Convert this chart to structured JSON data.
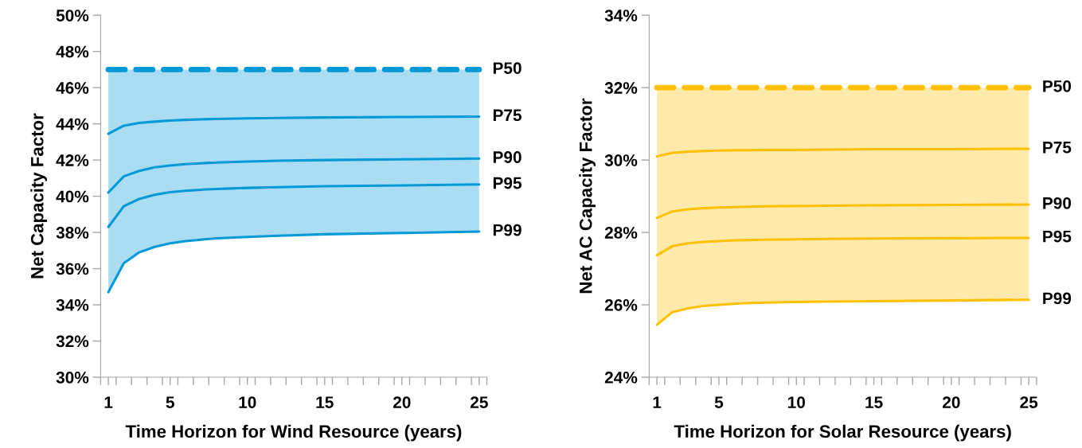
{
  "chart_data": [
    {
      "type": "line",
      "xlabel": "Time Horizon for Wind Resource (years)",
      "ylabel": "Net Capacity Factor",
      "xlim": [
        0.5,
        25.5
      ],
      "ylim": [
        30,
        50
      ],
      "xticks": [
        {
          "value": 0.5,
          "label": null
        },
        1,
        {
          "value": 1.5,
          "label": null
        },
        {
          "value": 2.5,
          "label": null
        },
        {
          "value": 3.5,
          "label": null
        },
        {
          "value": 4.5,
          "label": null
        },
        5,
        {
          "value": 5.5,
          "label": null
        },
        {
          "value": 6.5,
          "label": null
        },
        {
          "value": 7.5,
          "label": null
        },
        {
          "value": 8.5,
          "label": null
        },
        {
          "value": 9.5,
          "label": null
        },
        10,
        {
          "value": 10.5,
          "label": null
        },
        {
          "value": 11.5,
          "label": null
        },
        {
          "value": 12.5,
          "label": null
        },
        {
          "value": 13.5,
          "label": null
        },
        {
          "value": 14.5,
          "label": null
        },
        15,
        {
          "value": 15.5,
          "label": null
        },
        {
          "value": 16.5,
          "label": null
        },
        {
          "value": 17.5,
          "label": null
        },
        {
          "value": 18.5,
          "label": null
        },
        {
          "value": 19.5,
          "label": null
        },
        20,
        {
          "value": 20.5,
          "label": null
        },
        {
          "value": 21.5,
          "label": null
        },
        {
          "value": 22.5,
          "label": null
        },
        {
          "value": 23.5,
          "label": null
        },
        {
          "value": 24.5,
          "label": null
        },
        25,
        {
          "value": 25.5,
          "label": null
        }
      ],
      "yticks": [
        {
          "value": 30,
          "label": "30%"
        },
        {
          "value": 32,
          "label": "32%"
        },
        {
          "value": 34,
          "label": "34%"
        },
        {
          "value": 36,
          "label": "36%"
        },
        {
          "value": 38,
          "label": "38%"
        },
        {
          "value": 40,
          "label": "40%"
        },
        {
          "value": 42,
          "label": "42%"
        },
        {
          "value": 44,
          "label": "44%"
        },
        {
          "value": 46,
          "label": "46%"
        },
        {
          "value": 48,
          "label": "48%"
        },
        {
          "value": 50,
          "label": "50%"
        }
      ],
      "grid": false,
      "legend": false,
      "x": [
        1,
        2,
        3,
        4,
        5,
        6,
        7,
        8,
        10,
        12,
        15,
        20,
        25
      ],
      "series": [
        {
          "name": "P50",
          "color": "#0099d8",
          "line_style": "dashed",
          "values": [
            47,
            47,
            47,
            47,
            47,
            47,
            47,
            47,
            47,
            47,
            47,
            47,
            47
          ],
          "lower": [
            34.7,
            36.3,
            36.9,
            37.2,
            37.4,
            37.52,
            37.6,
            37.67,
            37.75,
            37.82,
            37.9,
            37.97,
            38.05
          ],
          "upper": [
            47,
            47,
            47,
            47,
            47,
            47,
            47,
            47,
            47,
            47,
            47,
            47,
            47
          ]
        },
        {
          "name": "P75",
          "color": "#0099d8",
          "line_style": "solid",
          "values": [
            43.45,
            43.9,
            44.05,
            44.12,
            44.18,
            44.22,
            44.25,
            44.27,
            44.3,
            44.32,
            44.35,
            44.38,
            44.4
          ]
        },
        {
          "name": "P90",
          "color": "#0099d8",
          "line_style": "solid",
          "values": [
            40.2,
            41.1,
            41.4,
            41.6,
            41.7,
            41.77,
            41.82,
            41.86,
            41.92,
            41.96,
            42.0,
            42.04,
            42.08
          ]
        },
        {
          "name": "P95",
          "color": "#0099d8",
          "line_style": "solid",
          "values": [
            38.3,
            39.45,
            39.85,
            40.08,
            40.22,
            40.3,
            40.36,
            40.4,
            40.46,
            40.5,
            40.55,
            40.6,
            40.65
          ]
        },
        {
          "name": "P99",
          "color": "#0099d8",
          "line_style": "solid",
          "values": [
            34.7,
            36.3,
            36.9,
            37.2,
            37.4,
            37.52,
            37.6,
            37.67,
            37.75,
            37.82,
            37.9,
            37.97,
            38.05
          ]
        }
      ]
    },
    {
      "type": "line",
      "xlabel": "Time Horizon for Solar Resource (years)",
      "ylabel": "Net AC Capacity Factor",
      "xlim": [
        0.5,
        25.5
      ],
      "ylim": [
        24,
        34
      ],
      "xticks": [
        {
          "value": 0.5,
          "label": null
        },
        1,
        {
          "value": 1.5,
          "label": null
        },
        {
          "value": 2.5,
          "label": null
        },
        {
          "value": 3.5,
          "label": null
        },
        {
          "value": 4.5,
          "label": null
        },
        5,
        {
          "value": 5.5,
          "label": null
        },
        {
          "value": 6.5,
          "label": null
        },
        {
          "value": 7.5,
          "label": null
        },
        {
          "value": 8.5,
          "label": null
        },
        {
          "value": 9.5,
          "label": null
        },
        10,
        {
          "value": 10.5,
          "label": null
        },
        {
          "value": 11.5,
          "label": null
        },
        {
          "value": 12.5,
          "label": null
        },
        {
          "value": 13.5,
          "label": null
        },
        {
          "value": 14.5,
          "label": null
        },
        15,
        {
          "value": 15.5,
          "label": null
        },
        {
          "value": 16.5,
          "label": null
        },
        {
          "value": 17.5,
          "label": null
        },
        {
          "value": 18.5,
          "label": null
        },
        {
          "value": 19.5,
          "label": null
        },
        20,
        {
          "value": 20.5,
          "label": null
        },
        {
          "value": 21.5,
          "label": null
        },
        {
          "value": 22.5,
          "label": null
        },
        {
          "value": 23.5,
          "label": null
        },
        {
          "value": 24.5,
          "label": null
        },
        25,
        {
          "value": 25.5,
          "label": null
        }
      ],
      "yticks": [
        {
          "value": 24,
          "label": "24%"
        },
        {
          "value": 26,
          "label": "26%"
        },
        {
          "value": 28,
          "label": "28%"
        },
        {
          "value": 30,
          "label": "30%"
        },
        {
          "value": 32,
          "label": "32%"
        },
        {
          "value": 34,
          "label": "34%"
        }
      ],
      "grid": false,
      "legend": false,
      "x": [
        1,
        2,
        3,
        4,
        5,
        6,
        7,
        8,
        10,
        12,
        15,
        20,
        25
      ],
      "series": [
        {
          "name": "P50",
          "color": "#ffc000",
          "line_style": "dashed",
          "values": [
            32,
            32,
            32,
            32,
            32,
            32,
            32,
            32,
            32,
            32,
            32,
            32,
            32
          ],
          "lower": [
            25.45,
            25.8,
            25.9,
            25.97,
            26.0,
            26.03,
            26.05,
            26.06,
            26.08,
            26.09,
            26.1,
            26.12,
            26.14
          ],
          "upper": [
            32,
            32,
            32,
            32,
            32,
            32,
            32,
            32,
            32,
            32,
            32,
            32,
            32
          ]
        },
        {
          "name": "P75",
          "color": "#ffc000",
          "line_style": "solid",
          "values": [
            30.1,
            30.2,
            30.23,
            30.25,
            30.26,
            30.27,
            30.27,
            30.28,
            30.28,
            30.29,
            30.3,
            30.3,
            30.31
          ]
        },
        {
          "name": "P90",
          "color": "#ffc000",
          "line_style": "solid",
          "values": [
            28.4,
            28.58,
            28.64,
            28.67,
            28.69,
            28.7,
            28.71,
            28.72,
            28.73,
            28.74,
            28.75,
            28.76,
            28.77
          ]
        },
        {
          "name": "P95",
          "color": "#ffc000",
          "line_style": "solid",
          "values": [
            27.37,
            27.62,
            27.7,
            27.74,
            27.76,
            27.78,
            27.79,
            27.8,
            27.81,
            27.82,
            27.83,
            27.84,
            27.85
          ]
        },
        {
          "name": "P99",
          "color": "#ffc000",
          "line_style": "solid",
          "values": [
            25.45,
            25.8,
            25.9,
            25.97,
            26.0,
            26.03,
            26.05,
            26.06,
            26.08,
            26.09,
            26.1,
            26.12,
            26.14
          ]
        }
      ]
    }
  ]
}
